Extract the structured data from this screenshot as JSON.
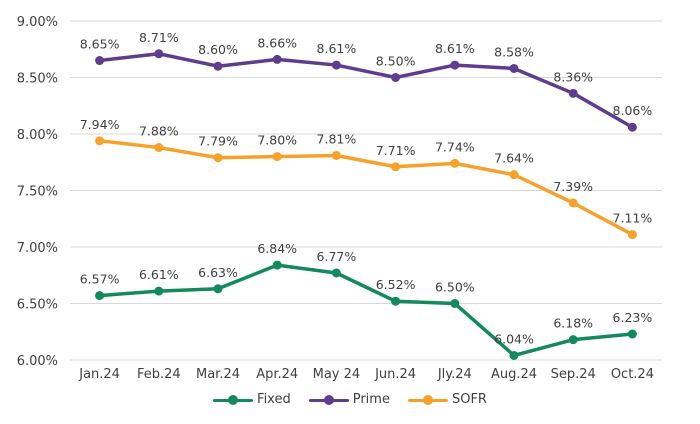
{
  "chart_data": {
    "type": "line",
    "title": "",
    "xlabel": "",
    "ylabel": "",
    "categories": [
      "Jan.24",
      "Feb.24",
      "Mar.24",
      "Apr.24",
      "May 24",
      "Jun.24",
      "Jly.24",
      "Aug.24",
      "Sep.24",
      "Oct.24"
    ],
    "ylim": [
      6.0,
      9.0
    ],
    "yticks": [
      6.0,
      6.5,
      7.0,
      7.5,
      8.0,
      8.5,
      9.0
    ],
    "ytick_labels": [
      "6.00%",
      "6.50%",
      "7.00%",
      "7.50%",
      "8.00%",
      "8.50%",
      "9.00%"
    ],
    "grid": true,
    "legend_position": "bottom",
    "series": [
      {
        "name": "Fixed",
        "color": "#128A5C",
        "values": [
          6.57,
          6.61,
          6.63,
          6.84,
          6.77,
          6.52,
          6.5,
          6.04,
          6.18,
          6.23
        ],
        "labels": [
          "6.57%",
          "6.61%",
          "6.63%",
          "6.84%",
          "6.77%",
          "6.52%",
          "6.50%",
          "6.04%",
          "6.18%",
          "6.23%"
        ]
      },
      {
        "name": "Prime",
        "color": "#5E3C8E",
        "values": [
          8.65,
          8.71,
          8.6,
          8.66,
          8.61,
          8.5,
          8.61,
          8.58,
          8.36,
          8.06
        ],
        "labels": [
          "8.65%",
          "8.71%",
          "8.60%",
          "8.66%",
          "8.61%",
          "8.50%",
          "8.61%",
          "8.58%",
          "8.36%",
          "8.06%"
        ]
      },
      {
        "name": "SOFR",
        "color": "#F7A12A",
        "values": [
          7.94,
          7.88,
          7.79,
          7.8,
          7.81,
          7.71,
          7.74,
          7.64,
          7.39,
          7.11
        ],
        "labels": [
          "7.94%",
          "7.88%",
          "7.79%",
          "7.80%",
          "7.81%",
          "7.71%",
          "7.74%",
          "7.64%",
          "7.39%",
          "7.11%"
        ]
      }
    ]
  }
}
